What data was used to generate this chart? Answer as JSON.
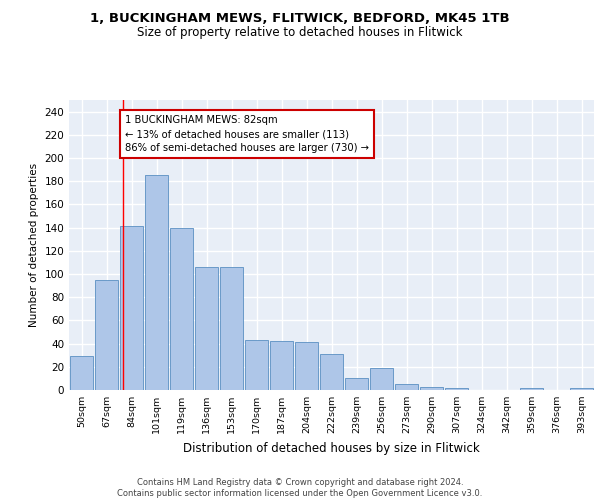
{
  "title1": "1, BUCKINGHAM MEWS, FLITWICK, BEDFORD, MK45 1TB",
  "title2": "Size of property relative to detached houses in Flitwick",
  "xlabel": "Distribution of detached houses by size in Flitwick",
  "ylabel": "Number of detached properties",
  "bar_values": [
    29,
    95,
    141,
    185,
    140,
    106,
    106,
    43,
    42,
    41,
    31,
    10,
    19,
    5,
    3,
    2,
    0,
    0,
    2,
    0,
    2
  ],
  "bar_labels": [
    "50sqm",
    "67sqm",
    "84sqm",
    "101sqm",
    "119sqm",
    "136sqm",
    "153sqm",
    "170sqm",
    "187sqm",
    "204sqm",
    "222sqm",
    "239sqm",
    "256sqm",
    "273sqm",
    "290sqm",
    "307sqm",
    "324sqm",
    "342sqm",
    "359sqm",
    "376sqm",
    "393sqm"
  ],
  "bar_color": "#aec6e8",
  "bar_edge_color": "#5a8fc2",
  "background_color": "#e8eef7",
  "grid_color": "#ffffff",
  "annotation_text": "1 BUCKINGHAM MEWS: 82sqm\n← 13% of detached houses are smaller (113)\n86% of semi-detached houses are larger (730) →",
  "annotation_box_color": "#ffffff",
  "annotation_box_edge": "#cc0000",
  "red_line_x": 1.67,
  "footer_text": "Contains HM Land Registry data © Crown copyright and database right 2024.\nContains public sector information licensed under the Open Government Licence v3.0.",
  "ylim": [
    0,
    250
  ],
  "yticks": [
    0,
    20,
    40,
    60,
    80,
    100,
    120,
    140,
    160,
    180,
    200,
    220,
    240
  ]
}
